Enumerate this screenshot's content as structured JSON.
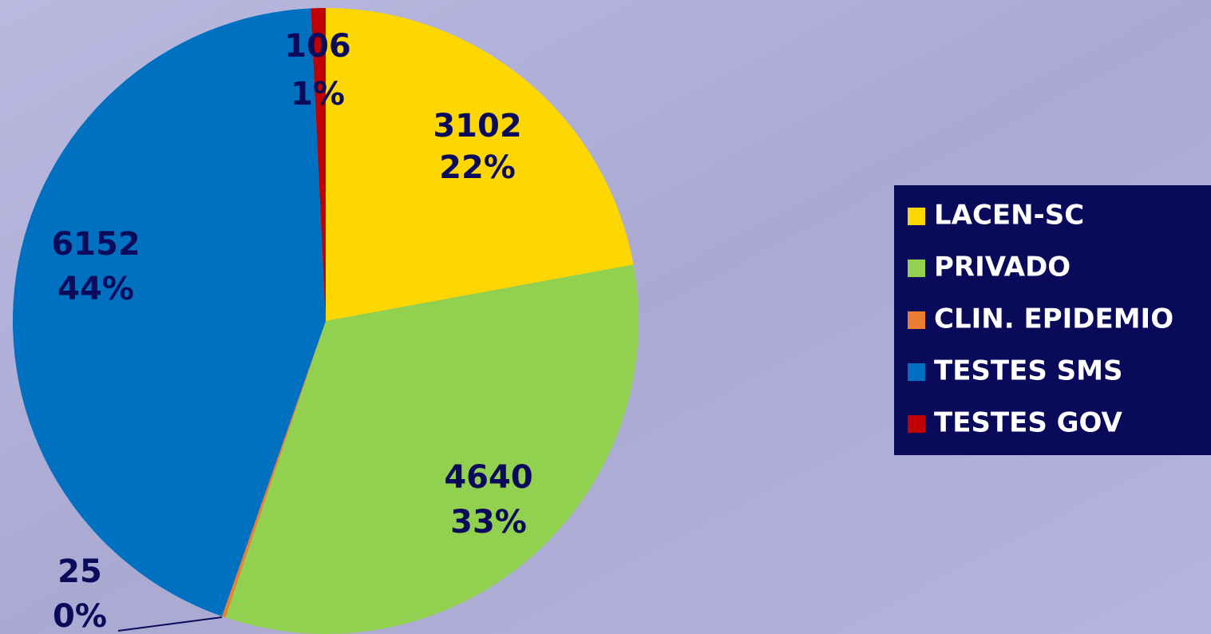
{
  "chart_data": {
    "type": "pie",
    "categories": [
      "LACEN-SC",
      "PRIVADO",
      "CLIN. EPIDEMIO",
      "TESTES SMS",
      "TESTES GOV"
    ],
    "values": [
      3102,
      4640,
      25,
      6152,
      106
    ],
    "percent_labels": [
      "22%",
      "33%",
      "0%",
      "44%",
      "1%"
    ],
    "colors": [
      "#ffd700",
      "#92d050",
      "#ed7d31",
      "#0070c0",
      "#c00000"
    ],
    "legend": "right"
  }
}
